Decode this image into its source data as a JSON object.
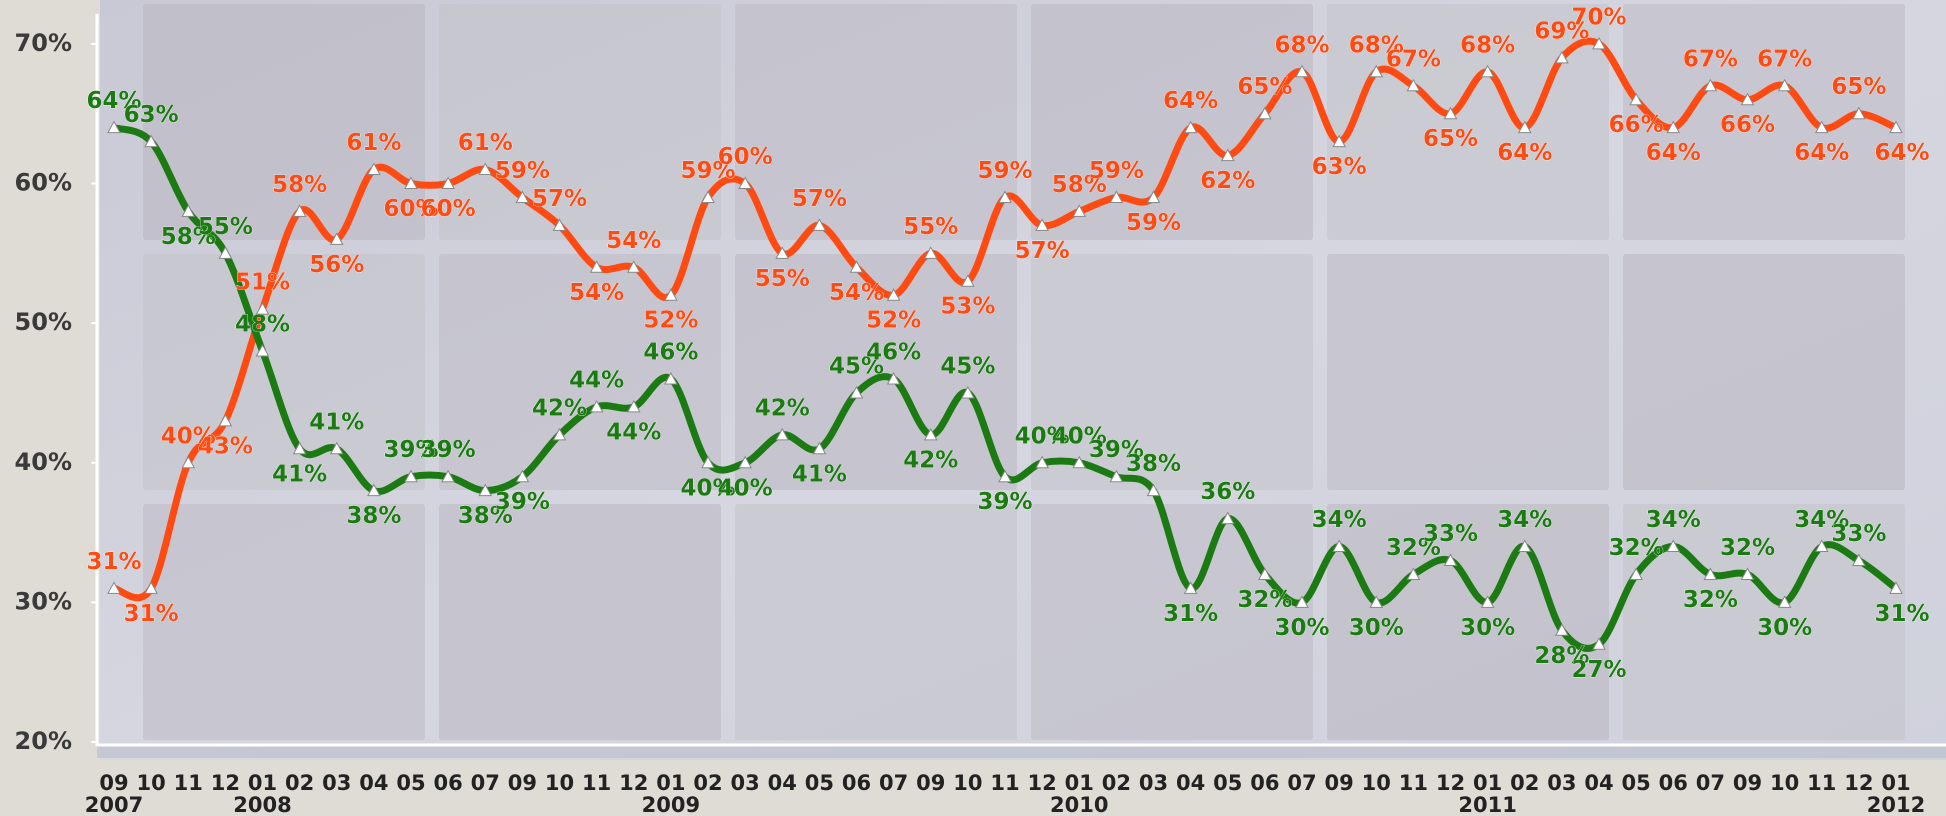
{
  "chart_data": {
    "type": "line",
    "categories": [
      "09",
      "10",
      "11",
      "12",
      "01",
      "02",
      "03",
      "04",
      "05",
      "06",
      "07",
      "09",
      "10",
      "11",
      "12",
      "01",
      "02",
      "03",
      "04",
      "05",
      "06",
      "07",
      "09",
      "10",
      "11",
      "12",
      "01",
      "02",
      "03",
      "04",
      "05",
      "06",
      "07",
      "09",
      "10",
      "11",
      "12",
      "01",
      "02",
      "03",
      "04",
      "05",
      "06",
      "07",
      "09",
      "10",
      "11",
      "12",
      "01"
    ],
    "year_labels": [
      "2007",
      null,
      null,
      null,
      "2008",
      null,
      null,
      null,
      null,
      null,
      null,
      null,
      null,
      null,
      null,
      "2009",
      null,
      null,
      null,
      null,
      null,
      null,
      null,
      null,
      null,
      null,
      "2010",
      null,
      null,
      null,
      null,
      null,
      null,
      null,
      null,
      null,
      null,
      "2011",
      null,
      null,
      null,
      null,
      null,
      null,
      null,
      null,
      null,
      null,
      "2012"
    ],
    "series": [
      {
        "color": "#ff4b12",
        "values": [
          31,
          31,
          40,
          43,
          51,
          58,
          56,
          61,
          60,
          60,
          61,
          59,
          57,
          54,
          54,
          52,
          59,
          60,
          55,
          57,
          54,
          52,
          55,
          53,
          59,
          57,
          58,
          59,
          59,
          64,
          62,
          65,
          68,
          63,
          68,
          67,
          65,
          68,
          64,
          69,
          70,
          66,
          64,
          67,
          66,
          67,
          64,
          65,
          64
        ],
        "value_labels": [
          "31%",
          "31%",
          "40%",
          "43%",
          "51%",
          "58%",
          "56%",
          "61%",
          "60%",
          "60%",
          "61%",
          "59%",
          "57%",
          "54%",
          "54%",
          "52%",
          "59%",
          "60%",
          "55%",
          "57%",
          "54%",
          "52%",
          "55%",
          "53%",
          "59%",
          "57%",
          "58%",
          "59%",
          "59%",
          "64%",
          "62%",
          "65%",
          "68%",
          "63%",
          "68%",
          "67%",
          "65%",
          "68%",
          "64%",
          "69%",
          "70%",
          "66%",
          "64%",
          "67%",
          "66%",
          "67%",
          "64%",
          "65%",
          "64%"
        ]
      },
      {
        "color": "#1c7a12",
        "values": [
          64,
          63,
          58,
          55,
          48,
          41,
          41,
          38,
          39,
          39,
          38,
          39,
          42,
          44,
          44,
          46,
          40,
          40,
          42,
          41,
          45,
          46,
          42,
          45,
          39,
          40,
          40,
          39,
          38,
          31,
          36,
          32,
          30,
          34,
          30,
          32,
          33,
          30,
          34,
          28,
          27,
          32,
          34,
          32,
          32,
          30,
          34,
          33,
          31
        ],
        "value_labels": [
          "64%",
          "63%",
          "58%",
          "55%",
          "48%",
          "41%",
          "41%",
          "38%",
          "39%",
          "39%",
          "38%",
          "39%",
          "42%",
          "44%",
          "44%",
          "46%",
          "40%",
          "40%",
          "42%",
          "41%",
          "45%",
          "46%",
          "42%",
          "45%",
          "39%",
          "40%",
          "40%",
          "39%",
          "38%",
          "31%",
          "36%",
          "32%",
          "30%",
          "34%",
          "30%",
          "32%",
          "33%",
          "30%",
          "34%",
          "28%",
          "27%",
          "32%",
          "34%",
          "32%",
          "32%",
          "30%",
          "34%",
          "33%",
          "31%"
        ]
      }
    ],
    "ylim": [
      20,
      73
    ],
    "yticks": [
      {
        "value": 20,
        "label": "20%"
      },
      {
        "value": 30,
        "label": "30%"
      },
      {
        "value": 40,
        "label": "40%"
      },
      {
        "value": 50,
        "label": "50%"
      },
      {
        "value": 60,
        "label": "60%"
      },
      {
        "value": 70,
        "label": "70%"
      }
    ],
    "grid": false
  }
}
